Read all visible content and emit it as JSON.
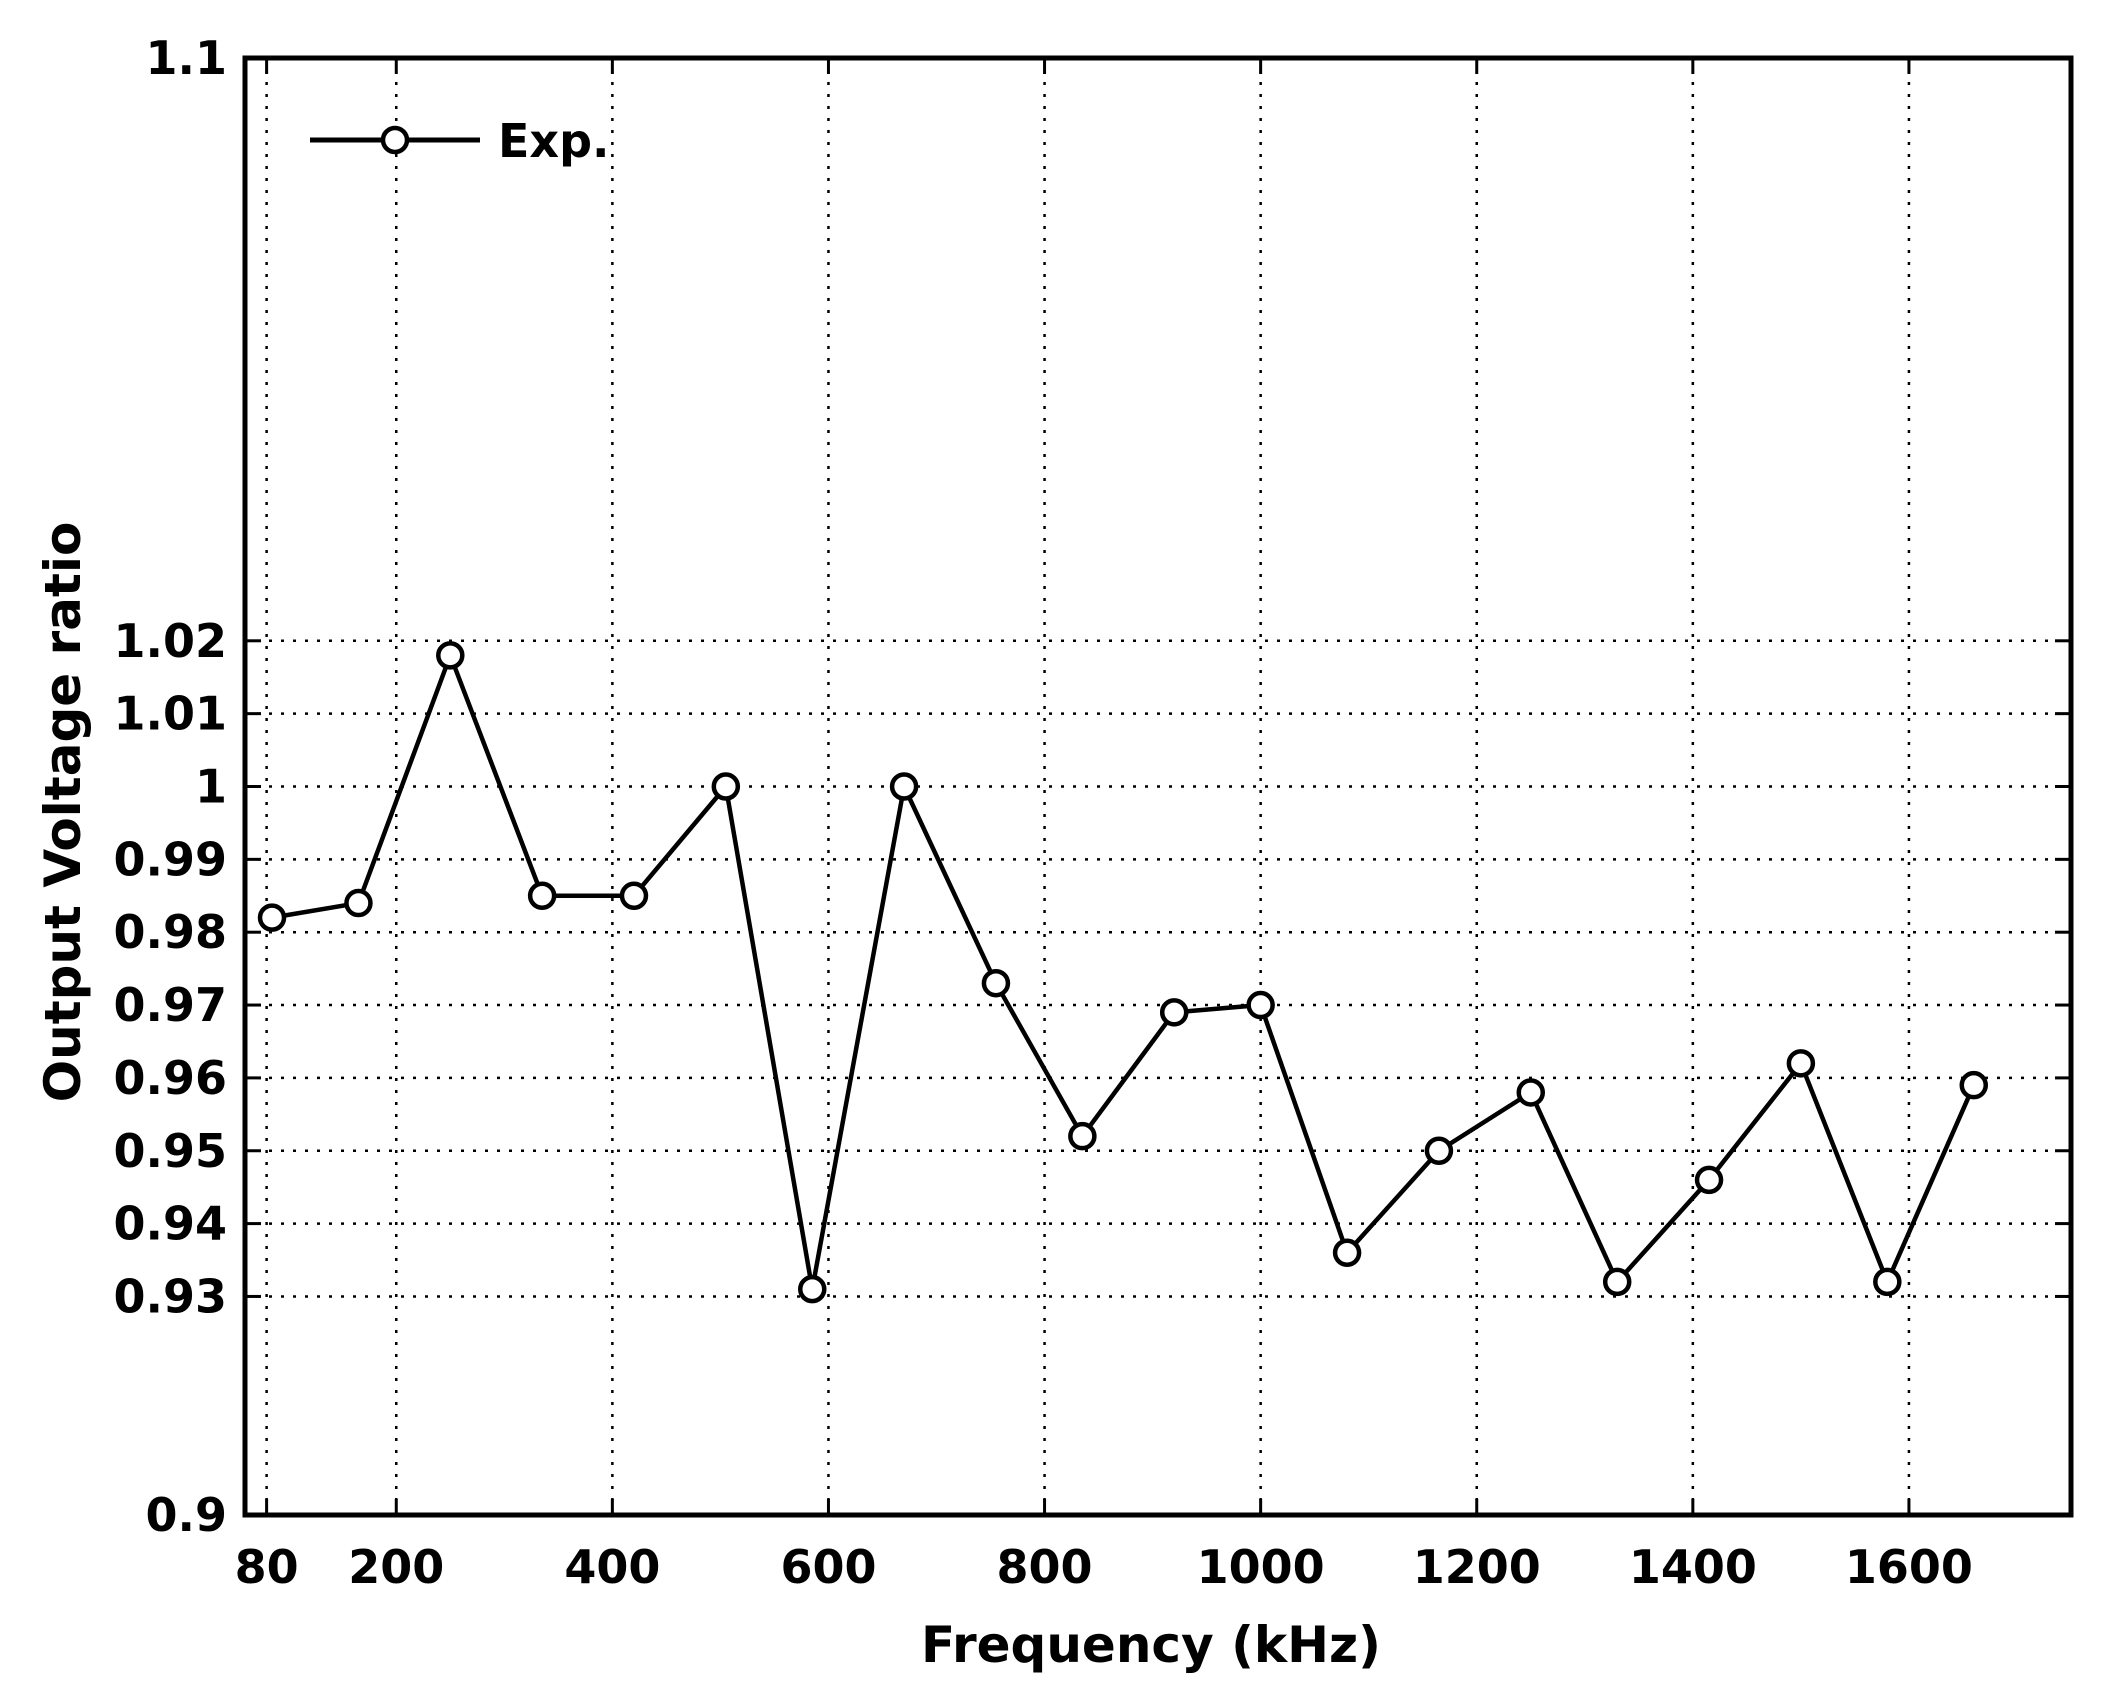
{
  "chart_data": {
    "type": "line",
    "xlabel": "Frequency (kHz)",
    "ylabel": "Output Voltage ratio",
    "xlim": [
      60,
      1750
    ],
    "ylim": [
      0.9,
      1.1
    ],
    "x_ticks": [
      80,
      200,
      400,
      600,
      800,
      1000,
      1200,
      1400,
      1600
    ],
    "x_tick_labels": [
      "80",
      "200",
      "400",
      "600",
      "800",
      "1000",
      "1200",
      "1400",
      "1600"
    ],
    "y_ticks": [
      0.9,
      0.93,
      0.94,
      0.95,
      0.96,
      0.97,
      0.98,
      0.99,
      1.0,
      1.01,
      1.02,
      1.1
    ],
    "y_tick_labels": [
      "0.9",
      "0.93",
      "0.94",
      "0.95",
      "0.96",
      "0.97",
      "0.98",
      "0.99",
      "1",
      "1.01",
      "1.02",
      "1.1"
    ],
    "grid": true,
    "legend_position": "top-left",
    "series": [
      {
        "name": "Exp.",
        "color": "#000000",
        "marker": "circle",
        "x": [
          85,
          165,
          250,
          335,
          420,
          505,
          585,
          670,
          755,
          835,
          920,
          1000,
          1080,
          1165,
          1250,
          1330,
          1415,
          1500,
          1580,
          1660
        ],
        "y": [
          0.982,
          0.984,
          1.018,
          0.985,
          0.985,
          1.0,
          0.931,
          1.0,
          0.973,
          0.952,
          0.969,
          0.97,
          0.936,
          0.95,
          0.958,
          0.932,
          0.946,
          0.962,
          0.932,
          0.959
        ]
      }
    ]
  }
}
